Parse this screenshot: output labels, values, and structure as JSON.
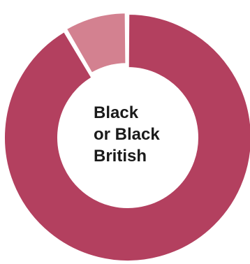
{
  "chart_data": {
    "type": "pie",
    "donut": true,
    "center_label_lines": [
      "Black",
      "or Black",
      "British"
    ],
    "slices": [
      {
        "value": 91.5,
        "color": "#b3405f"
      },
      {
        "value": 8.5,
        "color": "#d38190"
      }
    ],
    "legend": "none",
    "grid": false
  }
}
